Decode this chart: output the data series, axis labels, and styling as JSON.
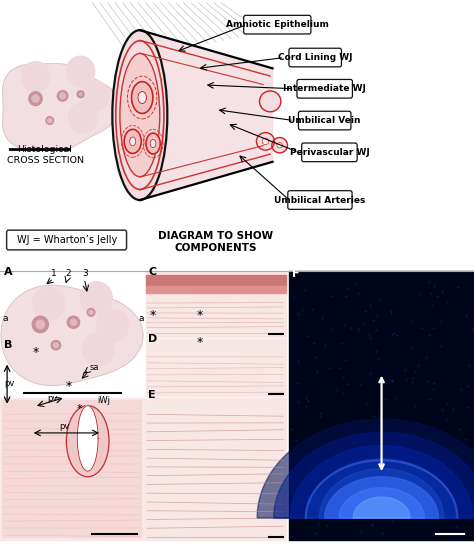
{
  "bg_color": "#ffffff",
  "fig_width": 4.74,
  "fig_height": 5.48,
  "dpi": 100,
  "label_boxes": [
    {
      "text": "Amniotic Epithelium",
      "bx": 0.52,
      "by": 0.955,
      "arrow_to": [
        0.37,
        0.905
      ]
    },
    {
      "text": "Cord Lining WJ",
      "bx": 0.6,
      "by": 0.895,
      "arrow_to": [
        0.415,
        0.875
      ]
    },
    {
      "text": "Intermediate WJ",
      "bx": 0.62,
      "by": 0.838,
      "arrow_to": [
        0.43,
        0.845
      ]
    },
    {
      "text": "Umbilical Vein",
      "bx": 0.62,
      "by": 0.78,
      "arrow_to": [
        0.455,
        0.8
      ]
    },
    {
      "text": "Perivascular WJ",
      "bx": 0.63,
      "by": 0.722,
      "arrow_to": [
        0.478,
        0.775
      ]
    },
    {
      "text": "Umbilical Arteries",
      "bx": 0.61,
      "by": 0.635,
      "arrow_to": [
        0.5,
        0.72
      ]
    }
  ],
  "hist_text": "Histological\nCROSS SECTION",
  "wj_text": "WJ = Wharton’s Jelly",
  "diag_text": "DIAGRAM TO SHOW\nCOMPONENTS",
  "panel_f_bg": "#00061a",
  "panel_f_glow1": "#0033aa",
  "panel_f_glow2": "#1155dd",
  "panel_f_bright": "#3377ff"
}
